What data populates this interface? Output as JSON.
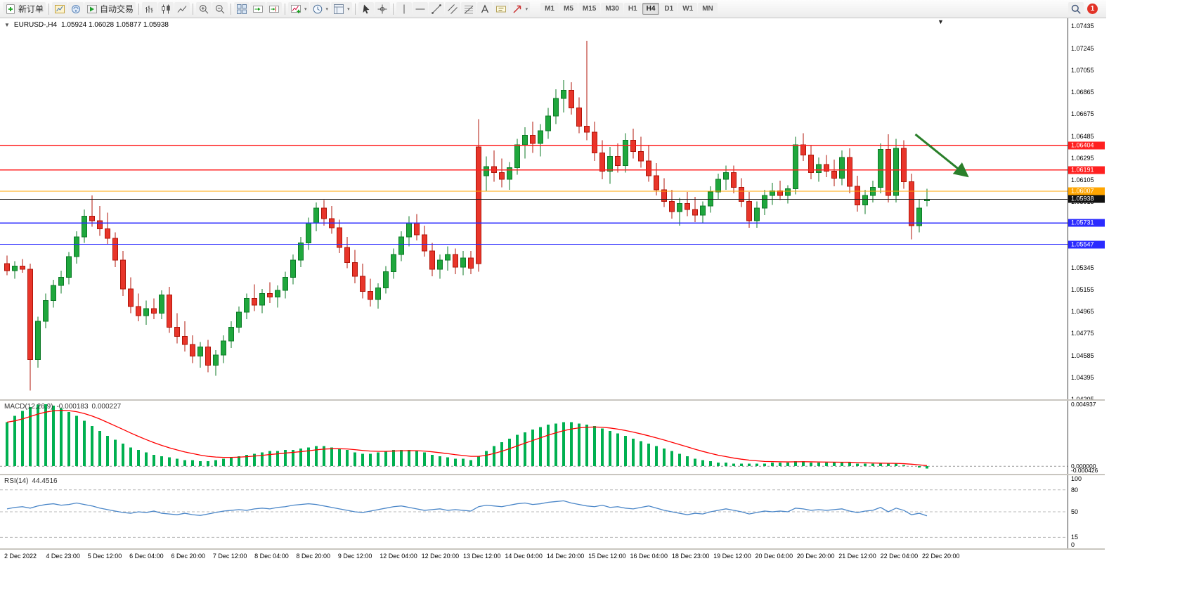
{
  "toolbar": {
    "timeframes": [
      "M1",
      "M5",
      "M15",
      "M30",
      "H1",
      "H4",
      "D1",
      "W1",
      "MN"
    ],
    "active_timeframe": "H4",
    "notification_count": "1",
    "items": [
      {
        "type": "labeled",
        "name": "new-order-button",
        "icon": "new-order-icon",
        "label": "新订单"
      },
      {
        "type": "sep"
      },
      {
        "type": "icon",
        "name": "chart-window-button",
        "icon": "chart-window-icon"
      },
      {
        "type": "icon",
        "name": "community-button",
        "icon": "community-icon"
      },
      {
        "type": "labeled",
        "name": "autotrading-button",
        "icon": "autotrading-icon",
        "label": "自动交易"
      },
      {
        "type": "sep"
      },
      {
        "type": "icon",
        "name": "bar-chart-button",
        "icon": "bar-chart-icon"
      },
      {
        "type": "icon",
        "name": "candlestick-chart-button",
        "icon": "candlestick-icon"
      },
      {
        "type": "icon",
        "name": "line-chart-button",
        "icon": "line-chart-icon"
      },
      {
        "type": "sep"
      },
      {
        "type": "icon",
        "name": "zoom-in-button",
        "icon": "zoom-in-icon"
      },
      {
        "type": "icon",
        "name": "zoom-out-button",
        "icon": "zoom-out-icon"
      },
      {
        "type": "sep"
      },
      {
        "type": "icon",
        "name": "tile-windows-button",
        "icon": "tile-windows-icon"
      },
      {
        "type": "icon",
        "name": "auto-scroll-button",
        "icon": "auto-scroll-icon"
      },
      {
        "type": "icon",
        "name": "chart-shift-button",
        "icon": "chart-shift-icon"
      },
      {
        "type": "sep"
      },
      {
        "type": "icon-dd",
        "name": "indicators-button",
        "icon": "indicators-icon"
      },
      {
        "type": "icon-dd",
        "name": "periods-button",
        "icon": "clock-icon"
      },
      {
        "type": "icon-dd",
        "name": "templates-button",
        "icon": "template-icon"
      },
      {
        "type": "sep"
      },
      {
        "type": "icon",
        "name": "cursor-button",
        "icon": "cursor-icon"
      },
      {
        "type": "icon",
        "name": "crosshair-button",
        "icon": "crosshair-icon"
      },
      {
        "type": "sep"
      },
      {
        "type": "icon",
        "name": "vertical-line-button",
        "icon": "vertical-line-icon"
      },
      {
        "type": "icon",
        "name": "horizontal-line-button",
        "icon": "horizontal-line-icon"
      },
      {
        "type": "icon",
        "name": "trendline-button",
        "icon": "trendline-icon"
      },
      {
        "type": "icon",
        "name": "channel-button",
        "icon": "channel-icon"
      },
      {
        "type": "icon",
        "name": "fibonacci-button",
        "icon": "fibonacci-icon"
      },
      {
        "type": "icon",
        "name": "text-button",
        "icon": "text-icon"
      },
      {
        "type": "icon",
        "name": "text-label-button",
        "icon": "text-label-icon"
      },
      {
        "type": "icon-dd",
        "name": "arrow-tools-button",
        "icon": "arrow-tools-icon"
      },
      {
        "type": "tf-group"
      },
      {
        "type": "spacer"
      },
      {
        "type": "icon",
        "name": "search-button",
        "icon": "search-icon"
      },
      {
        "type": "badge",
        "name": "notification-badge"
      }
    ]
  },
  "header": {
    "symbol_period": "EURUSD-,H4",
    "ohlc": "1.05924 1.06028 1.05877 1.05938"
  },
  "chart_data": {
    "type": "candlestick",
    "symbol": "EURUSD",
    "period": "H4",
    "colors": {
      "up": "#1fa73d",
      "up_stroke": "#0c7a26",
      "down": "#e8352a",
      "down_stroke": "#b01408",
      "macd_hist": "#00b050",
      "macd_signal": "#ff0000",
      "rsi_line": "#4a86c8",
      "price_line": "#1a1a1a",
      "arrow": "#2a7f2a"
    },
    "price_axis": {
      "top": 1.07505,
      "bottom": 1.04205,
      "ticks": [
        "1.07435",
        "1.07245",
        "1.07055",
        "1.06865",
        "1.06675",
        "1.06485",
        "1.06295",
        "1.06105",
        "1.05915",
        "1.05725",
        "1.05535",
        "1.05345",
        "1.05155",
        "1.04965",
        "1.04775",
        "1.04585",
        "1.04395",
        "1.04205"
      ]
    },
    "hlines": [
      {
        "price": 1.06404,
        "label": "1.06404",
        "color": "#ff2020"
      },
      {
        "price": 1.06191,
        "label": "1.06191",
        "color": "#ff2020"
      },
      {
        "price": 1.06007,
        "label": "1.06007",
        "color": "#ffa500"
      },
      {
        "price": 1.05731,
        "label": "1.05731",
        "color": "#2b2bff"
      },
      {
        "price": 1.05547,
        "label": "1.05547",
        "color": "#2b2bff"
      }
    ],
    "current_price": {
      "price": 1.05938,
      "label": "1.05938",
      "color": "#111111"
    },
    "annotation_arrow": {
      "from_index": 117.5,
      "from_price": 1.065,
      "to_index": 124,
      "to_price": 1.0615
    },
    "candles": [
      [
        1.0538,
        1.0545,
        1.0528,
        1.0532
      ],
      [
        1.0532,
        1.054,
        1.0525,
        1.0536
      ],
      [
        1.0536,
        1.0542,
        1.053,
        1.0533
      ],
      [
        1.0533,
        1.0538,
        1.0428,
        1.0455
      ],
      [
        1.0455,
        1.0492,
        1.0448,
        1.0488
      ],
      [
        1.0488,
        1.0512,
        1.0482,
        1.0506
      ],
      [
        1.0506,
        1.0524,
        1.05,
        1.0519
      ],
      [
        1.0519,
        1.0532,
        1.0512,
        1.0526
      ],
      [
        1.0526,
        1.0548,
        1.052,
        1.0544
      ],
      [
        1.0544,
        1.0566,
        1.0538,
        1.0561
      ],
      [
        1.0561,
        1.0585,
        1.0556,
        1.0579
      ],
      [
        1.0579,
        1.0597,
        1.057,
        1.0575
      ],
      [
        1.0575,
        1.0588,
        1.0562,
        1.0568
      ],
      [
        1.0568,
        1.0582,
        1.0555,
        1.056
      ],
      [
        1.056,
        1.0565,
        1.0535,
        1.0541
      ],
      [
        1.0541,
        1.0549,
        1.051,
        1.0516
      ],
      [
        1.0516,
        1.0526,
        1.0495,
        1.0501
      ],
      [
        1.0501,
        1.0512,
        1.0488,
        1.0493
      ],
      [
        1.0493,
        1.0506,
        1.0485,
        1.0499
      ],
      [
        1.0499,
        1.0508,
        1.049,
        1.0495
      ],
      [
        1.0495,
        1.0515,
        1.049,
        1.0511
      ],
      [
        1.0511,
        1.0518,
        1.0478,
        1.0483
      ],
      [
        1.0483,
        1.0495,
        1.0469,
        1.0475
      ],
      [
        1.0475,
        1.0488,
        1.0462,
        1.0468
      ],
      [
        1.0468,
        1.0476,
        1.0452,
        1.0458
      ],
      [
        1.0458,
        1.047,
        1.0448,
        1.0466
      ],
      [
        1.0466,
        1.0472,
        1.0444,
        1.045
      ],
      [
        1.045,
        1.0463,
        1.0441,
        1.0459
      ],
      [
        1.0459,
        1.0476,
        1.0452,
        1.0471
      ],
      [
        1.0471,
        1.0488,
        1.0465,
        1.0483
      ],
      [
        1.0483,
        1.0501,
        1.0478,
        1.0496
      ],
      [
        1.0496,
        1.0512,
        1.049,
        1.0508
      ],
      [
        1.0508,
        1.052,
        1.0497,
        1.0502
      ],
      [
        1.0502,
        1.0516,
        1.0495,
        1.0512
      ],
      [
        1.0512,
        1.0522,
        1.0504,
        1.0509
      ],
      [
        1.0509,
        1.0519,
        1.05,
        1.0515
      ],
      [
        1.0515,
        1.0531,
        1.0508,
        1.0526
      ],
      [
        1.0526,
        1.0546,
        1.052,
        1.0541
      ],
      [
        1.0541,
        1.0561,
        1.0535,
        1.0556
      ],
      [
        1.0556,
        1.0578,
        1.055,
        1.0573
      ],
      [
        1.0573,
        1.0591,
        1.0566,
        1.0586
      ],
      [
        1.0586,
        1.0593,
        1.0571,
        1.0577
      ],
      [
        1.0577,
        1.0588,
        1.0564,
        1.0569
      ],
      [
        1.0569,
        1.0576,
        1.0547,
        1.0552
      ],
      [
        1.0552,
        1.0561,
        1.0534,
        1.0539
      ],
      [
        1.0539,
        1.055,
        1.0521,
        1.0527
      ],
      [
        1.0527,
        1.0538,
        1.0508,
        1.0514
      ],
      [
        1.0514,
        1.0525,
        1.0501,
        1.0507
      ],
      [
        1.0507,
        1.0521,
        1.0499,
        1.0517
      ],
      [
        1.0517,
        1.0536,
        1.0512,
        1.0531
      ],
      [
        1.0531,
        1.0551,
        1.0525,
        1.0546
      ],
      [
        1.0546,
        1.0566,
        1.054,
        1.0561
      ],
      [
        1.0561,
        1.0579,
        1.0553,
        1.0573
      ],
      [
        1.0573,
        1.0581,
        1.0558,
        1.0563
      ],
      [
        1.0563,
        1.0571,
        1.0544,
        1.0549
      ],
      [
        1.0549,
        1.0556,
        1.0527,
        1.0533
      ],
      [
        1.0533,
        1.0546,
        1.0525,
        1.0541
      ],
      [
        1.0541,
        1.0553,
        1.0532,
        1.0546
      ],
      [
        1.0546,
        1.0551,
        1.0529,
        1.0535
      ],
      [
        1.0535,
        1.0549,
        1.0528,
        1.0543
      ],
      [
        1.0543,
        1.0549,
        1.0529,
        1.0534
      ],
      [
        1.0639,
        1.0663,
        1.0531,
        1.0538
      ],
      [
        1.0614,
        1.0631,
        1.0601,
        1.0622
      ],
      [
        1.0622,
        1.0636,
        1.0609,
        1.0617
      ],
      [
        1.0617,
        1.0629,
        1.0604,
        1.0611
      ],
      [
        1.0611,
        1.0626,
        1.0602,
        1.0621
      ],
      [
        1.0621,
        1.0646,
        1.0615,
        1.0641
      ],
      [
        1.0641,
        1.0656,
        1.0629,
        1.0649
      ],
      [
        1.0649,
        1.0661,
        1.0634,
        1.0642
      ],
      [
        1.0642,
        1.0659,
        1.0631,
        1.0653
      ],
      [
        1.0653,
        1.0673,
        1.0646,
        1.0666
      ],
      [
        1.0666,
        1.0689,
        1.0659,
        1.0681
      ],
      [
        1.0681,
        1.0697,
        1.0669,
        1.0688
      ],
      [
        1.0688,
        1.0695,
        1.0667,
        1.0673
      ],
      [
        1.0673,
        1.0682,
        1.0651,
        1.0657
      ],
      [
        1.0657,
        1.0731,
        1.0645,
        1.0652
      ],
      [
        1.0652,
        1.0661,
        1.0627,
        1.0634
      ],
      [
        1.0634,
        1.0645,
        1.0611,
        1.0618
      ],
      [
        1.0618,
        1.0639,
        1.0607,
        1.0631
      ],
      [
        1.0631,
        1.0642,
        1.0617,
        1.0623
      ],
      [
        1.0623,
        1.0651,
        1.0617,
        1.0645
      ],
      [
        1.0645,
        1.0655,
        1.0629,
        1.0635
      ],
      [
        1.0635,
        1.0648,
        1.0621,
        1.0627
      ],
      [
        1.0627,
        1.064,
        1.0609,
        1.0614
      ],
      [
        1.0614,
        1.0625,
        1.0597,
        1.0602
      ],
      [
        1.0602,
        1.0612,
        1.0587,
        1.0592
      ],
      [
        1.0592,
        1.0602,
        1.0577,
        1.0583
      ],
      [
        1.0583,
        1.0595,
        1.0571,
        1.059
      ],
      [
        1.059,
        1.06,
        1.0579,
        1.0585
      ],
      [
        1.0585,
        1.0596,
        1.0574,
        1.058
      ],
      [
        1.058,
        1.0592,
        1.0573,
        1.0588
      ],
      [
        1.0588,
        1.0605,
        1.0582,
        1.06
      ],
      [
        1.06,
        1.0616,
        1.0594,
        1.0611
      ],
      [
        1.0611,
        1.0623,
        1.0602,
        1.0617
      ],
      [
        1.0617,
        1.0623,
        1.0599,
        1.0604
      ],
      [
        1.0604,
        1.0612,
        1.0587,
        1.0592
      ],
      [
        1.0592,
        1.06,
        1.0569,
        1.0575
      ],
      [
        1.0575,
        1.0592,
        1.0569,
        1.0586
      ],
      [
        1.0586,
        1.0602,
        1.058,
        1.0597
      ],
      [
        1.0597,
        1.0608,
        1.0589,
        1.0601
      ],
      [
        1.0601,
        1.061,
        1.0593,
        1.0597
      ],
      [
        1.0597,
        1.0606,
        1.059,
        1.0603
      ],
      [
        1.0603,
        1.0648,
        1.0598,
        1.0641
      ],
      [
        1.0641,
        1.0651,
        1.0627,
        1.0632
      ],
      [
        1.0632,
        1.064,
        1.0611,
        1.0617
      ],
      [
        1.0617,
        1.063,
        1.0609,
        1.0624
      ],
      [
        1.0624,
        1.0632,
        1.0613,
        1.0618
      ],
      [
        1.0618,
        1.0628,
        1.0605,
        1.0612
      ],
      [
        1.0612,
        1.0636,
        1.0606,
        1.063
      ],
      [
        1.063,
        1.0638,
        1.0599,
        1.0605
      ],
      [
        1.0605,
        1.0614,
        1.0583,
        1.0589
      ],
      [
        1.0589,
        1.0602,
        1.0581,
        1.0597
      ],
      [
        1.0597,
        1.061,
        1.0591,
        1.0604
      ],
      [
        1.0604,
        1.0642,
        1.0599,
        1.0637
      ],
      [
        1.0637,
        1.065,
        1.0591,
        1.0597
      ],
      [
        1.0597,
        1.0646,
        1.0591,
        1.0638
      ],
      [
        1.0638,
        1.0645,
        1.0603,
        1.0609
      ],
      [
        1.0609,
        1.0616,
        1.0559,
        1.0571
      ],
      [
        1.0571,
        1.0594,
        1.0565,
        1.0586
      ],
      [
        1.05924,
        1.06028,
        1.05877,
        1.05938
      ]
    ],
    "macd": {
      "label": "MACD(12,26,9)",
      "main_value": "-0.000183",
      "signal_value": "0.000227",
      "scale": {
        "top": 0.0052,
        "bottom": -0.0006
      },
      "ticks": [
        {
          "v": 0.004937,
          "t": "0.004937"
        },
        {
          "v": 0,
          "t": "0.000000"
        },
        {
          "v": -0.000426,
          "t": "-0.000426"
        }
      ],
      "values": [
        0.0035,
        0.004,
        0.0044,
        0.0047,
        0.0049,
        0.00493,
        0.0048,
        0.0046,
        0.0043,
        0.004,
        0.0036,
        0.0032,
        0.0028,
        0.0024,
        0.0021,
        0.0018,
        0.0015,
        0.0013,
        0.0011,
        0.0009,
        0.0008,
        0.0007,
        0.0006,
        0.0005,
        0.0005,
        0.0004,
        0.0004,
        0.0005,
        0.0006,
        0.0007,
        0.0008,
        0.0009,
        0.001,
        0.0011,
        0.0012,
        0.0012,
        0.0013,
        0.0013,
        0.0014,
        0.0015,
        0.0016,
        0.0016,
        0.0015,
        0.0014,
        0.0013,
        0.0011,
        0.001,
        0.001,
        0.0011,
        0.0012,
        0.0013,
        0.0013,
        0.0013,
        0.0012,
        0.0011,
        0.0009,
        0.0008,
        0.0007,
        0.0006,
        0.0006,
        0.0005,
        0.0008,
        0.0012,
        0.0016,
        0.0019,
        0.0022,
        0.0025,
        0.0027,
        0.0029,
        0.0031,
        0.0033,
        0.0034,
        0.0035,
        0.0035,
        0.0034,
        0.0033,
        0.0032,
        0.003,
        0.0028,
        0.0026,
        0.0024,
        0.0022,
        0.002,
        0.0018,
        0.0016,
        0.0014,
        0.0012,
        0.001,
        0.0008,
        0.0006,
        0.0005,
        0.0004,
        0.0003,
        0.0003,
        0.0002,
        0.0002,
        0.0002,
        0.0002,
        0.0002,
        0.0003,
        0.0003,
        0.0003,
        0.0004,
        0.0004,
        0.0003,
        0.0003,
        0.0003,
        0.0003,
        0.0003,
        0.0003,
        0.0002,
        0.0002,
        0.0002,
        0.0002,
        0.0002,
        0.0002,
        0.0001,
        0.0,
        -0.0001,
        -0.000183
      ]
    },
    "rsi": {
      "label": "RSI(14)",
      "value": "44.4516",
      "levels": [
        80,
        50,
        15
      ],
      "ticks": [
        {
          "v": 100,
          "t": "100"
        },
        {
          "v": 80,
          "t": "80"
        },
        {
          "v": 50,
          "t": "50"
        },
        {
          "v": 15,
          "t": "15"
        },
        {
          "v": 0,
          "t": "0"
        }
      ],
      "values": [
        54,
        56,
        57,
        55,
        58,
        60,
        61,
        59,
        60,
        62,
        60,
        58,
        55,
        53,
        51,
        49,
        48,
        50,
        49,
        51,
        48,
        47,
        46,
        48,
        46,
        45,
        47,
        49,
        51,
        52,
        53,
        52,
        54,
        55,
        54,
        56,
        57,
        59,
        60,
        61,
        60,
        58,
        56,
        54,
        52,
        50,
        49,
        51,
        53,
        55,
        57,
        58,
        56,
        54,
        52,
        53,
        54,
        52,
        53,
        52,
        51,
        57,
        59,
        58,
        57,
        59,
        61,
        62,
        60,
        61,
        63,
        64,
        65,
        62,
        60,
        58,
        57,
        59,
        56,
        57,
        55,
        54,
        56,
        58,
        55,
        52,
        50,
        48,
        46,
        48,
        47,
        50,
        52,
        54,
        52,
        50,
        47,
        49,
        51,
        50,
        51,
        50,
        55,
        54,
        52,
        53,
        52,
        53,
        54,
        51,
        49,
        51,
        52,
        56,
        50,
        55,
        52,
        46,
        48,
        44.4516
      ]
    },
    "time_labels": [
      "2 Dec 2022",
      "4 Dec 23:00",
      "5 Dec 12:00",
      "6 Dec 04:00",
      "6 Dec 20:00",
      "7 Dec 12:00",
      "8 Dec 04:00",
      "8 Dec 20:00",
      "9 Dec 12:00",
      "12 Dec 04:00",
      "12 Dec 20:00",
      "13 Dec 12:00",
      "14 Dec 04:00",
      "14 Dec 20:00",
      "15 Dec 12:00",
      "16 Dec 04:00",
      "18 Dec 23:00",
      "19 Dec 12:00",
      "20 Dec 04:00",
      "20 Dec 20:00",
      "21 Dec 12:00",
      "22 Dec 04:00",
      "22 Dec 20:00"
    ]
  }
}
